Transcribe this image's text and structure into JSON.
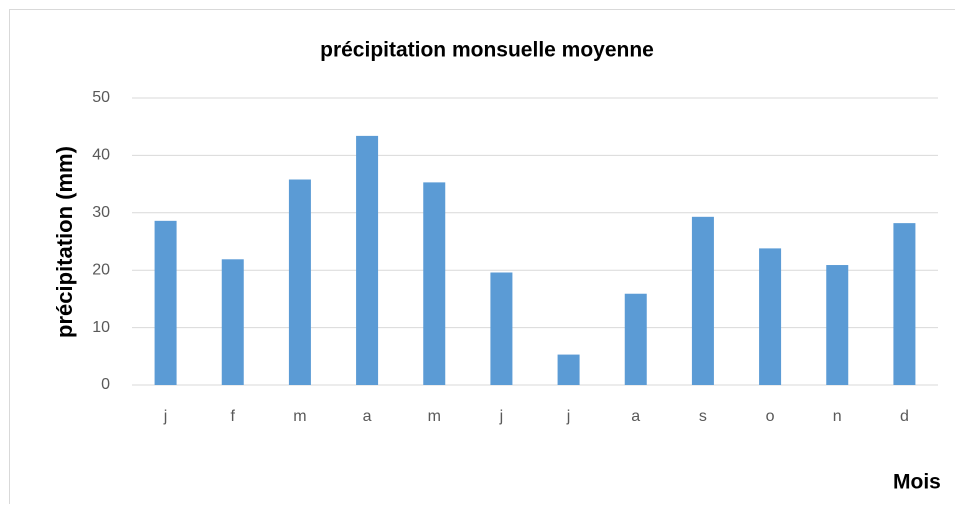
{
  "chart_data": {
    "type": "bar",
    "title": "précipitation monsuelle moyenne",
    "y_label": "précipitation (mm)",
    "x_label": "Mois",
    "categories": [
      "j",
      "f",
      "m",
      "a",
      "m",
      "j",
      "j",
      "a",
      "s",
      "o",
      "n",
      "d"
    ],
    "values": [
      28.6,
      21.9,
      35.8,
      43.4,
      35.3,
      19.6,
      5.3,
      15.9,
      29.3,
      23.8,
      20.9,
      28.2
    ],
    "color": "#5b9bd5",
    "ylim": [
      0,
      50
    ],
    "yticks": [
      0,
      10,
      20,
      30,
      40,
      50
    ],
    "grid": true
  }
}
